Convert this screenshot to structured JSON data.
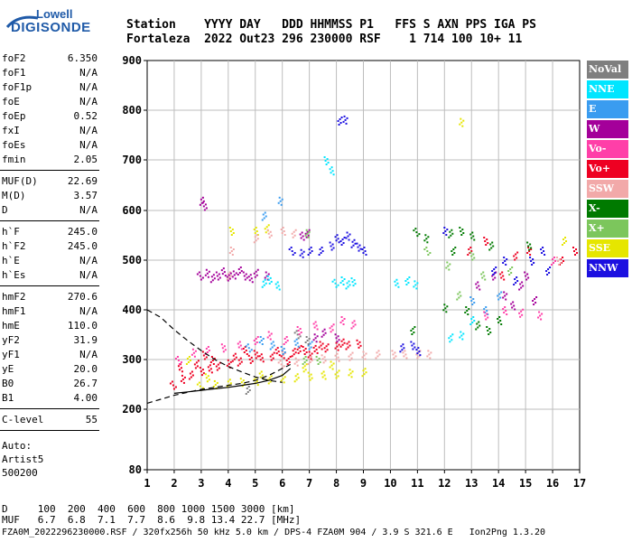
{
  "logo": {
    "line1": "Lowell",
    "line2": "DIGISONDE"
  },
  "header": {
    "line1": "Station    YYYY DAY   DDD HHMMSS P1   FFS S AXN PPS IGA PS",
    "line2": "Fortaleza  2022 Out23 296 230000 RSF    1 714 100 10+ 11"
  },
  "params_group1": [
    {
      "key": "foF2",
      "value": "6.350"
    },
    {
      "key": "foF1",
      "value": "N/A"
    },
    {
      "key": "foF1p",
      "value": "N/A"
    },
    {
      "key": "foE",
      "value": "N/A"
    },
    {
      "key": "foEp",
      "value": "0.52"
    },
    {
      "key": "fxI",
      "value": "N/A"
    },
    {
      "key": "foEs",
      "value": "N/A"
    },
    {
      "key": "fmin",
      "value": "2.05"
    }
  ],
  "params_group2": [
    {
      "key": "MUF(D)",
      "value": "22.69"
    },
    {
      "key": "M(D)",
      "value": "3.57"
    },
    {
      "key": "D",
      "value": "N/A"
    }
  ],
  "params_group3": [
    {
      "key": "h`F",
      "value": "245.0"
    },
    {
      "key": "h`F2",
      "value": "245.0"
    },
    {
      "key": "h`E",
      "value": "N/A"
    },
    {
      "key": "h`Es",
      "value": "N/A"
    }
  ],
  "params_group4": [
    {
      "key": "hmF2",
      "value": "270.6"
    },
    {
      "key": "hmF1",
      "value": "N/A"
    },
    {
      "key": "hmE",
      "value": "110.0"
    },
    {
      "key": "yF2",
      "value": "31.9"
    },
    {
      "key": "yF1",
      "value": "N/A"
    },
    {
      "key": "yE",
      "value": "20.0"
    },
    {
      "key": "B0",
      "value": "26.7"
    },
    {
      "key": "B1",
      "value": "4.00"
    }
  ],
  "params_group5": [
    {
      "key": "C-level",
      "value": "55"
    }
  ],
  "auto_lines": [
    "Auto:",
    "Artist5",
    "500200"
  ],
  "legend": [
    {
      "label": "NoVal",
      "color": "#7f7f7f"
    },
    {
      "label": "NNE",
      "color": "#00e5ff"
    },
    {
      "label": "E",
      "color": "#3a9cf0"
    },
    {
      "label": "W",
      "color": "#a4009a"
    },
    {
      "label": "Vo-",
      "color": "#ff3fa8"
    },
    {
      "label": "Vo+",
      "color": "#ee0022"
    },
    {
      "label": "SSW",
      "color": "#f2a9a9"
    },
    {
      "label": "X-",
      "color": "#007a00"
    },
    {
      "label": "X+",
      "color": "#7cc65c"
    },
    {
      "label": "SSE",
      "color": "#e6e600"
    },
    {
      "label": "NNW",
      "color": "#1c10e0"
    }
  ],
  "bottom": {
    "d_line": "D     100  200  400  600  800 1000 1500 3000 [km]",
    "muf_line": "MUF   6.7  6.8  7.1  7.7  8.6  9.8 13.4 22.7 [MHz]",
    "footer": "FZA0M_2022296230000.RSF / 320fx256h 50 kHz 5.0 km / DPS-4 FZA0M 904 / 3.9 S 321.6 E   Ion2Png 1.3.20"
  },
  "chart_data": {
    "type": "scatter",
    "xlim": [
      1,
      17
    ],
    "ylim": [
      80,
      900
    ],
    "x_ticks": [
      "1",
      "2",
      "3",
      "4",
      "5",
      "6",
      "7",
      "8",
      "9",
      "10",
      "11",
      "12",
      "13",
      "14",
      "15",
      "16",
      "17"
    ],
    "y_ticks": [
      "80",
      "200",
      "300",
      "400",
      "500",
      "600",
      "700",
      "800",
      "900"
    ],
    "grid": true,
    "series": [
      {
        "name": "Vo+",
        "color": "#ee0022",
        "points": [
          [
            2.0,
            250
          ],
          [
            2.3,
            262
          ],
          [
            2.6,
            270
          ],
          [
            3.0,
            278
          ],
          [
            3.3,
            283
          ],
          [
            3.6,
            288
          ],
          [
            4.0,
            293
          ],
          [
            4.4,
            297
          ],
          [
            4.8,
            302
          ],
          [
            5.2,
            305
          ],
          [
            5.6,
            308
          ],
          [
            6.0,
            312
          ],
          [
            6.4,
            316
          ],
          [
            6.8,
            320
          ],
          [
            7.2,
            322
          ],
          [
            7.6,
            325
          ],
          [
            8.0,
            328
          ],
          [
            8.4,
            330
          ],
          [
            8.8,
            333
          ],
          [
            2.2,
            285
          ],
          [
            2.8,
            292
          ],
          [
            3.4,
            300
          ],
          [
            4.2,
            306
          ],
          [
            5.0,
            312
          ],
          [
            5.8,
            318
          ],
          [
            6.6,
            322
          ],
          [
            7.4,
            330
          ],
          [
            8.2,
            335
          ],
          [
            3.1,
            310
          ],
          [
            4.6,
            320
          ],
          [
            6.2,
            300
          ],
          [
            7.0,
            310
          ],
          [
            12.9,
            520
          ],
          [
            13.5,
            540
          ],
          [
            14.1,
            470
          ],
          [
            14.6,
            510
          ],
          [
            15.1,
            520
          ],
          [
            16.3,
            500
          ],
          [
            16.8,
            520
          ]
        ]
      },
      {
        "name": "SSE",
        "color": "#e6e600",
        "points": [
          [
            3.0,
            248
          ],
          [
            3.5,
            251
          ],
          [
            4.0,
            254
          ],
          [
            4.5,
            256
          ],
          [
            5.0,
            258
          ],
          [
            5.5,
            261
          ],
          [
            6.0,
            263
          ],
          [
            6.5,
            265
          ],
          [
            7.0,
            268
          ],
          [
            7.5,
            270
          ],
          [
            8.0,
            272
          ],
          [
            8.5,
            274
          ],
          [
            9.0,
            276
          ],
          [
            3.2,
            265
          ],
          [
            5.2,
            270
          ],
          [
            6.8,
            285
          ],
          [
            7.8,
            290
          ],
          [
            2.5,
            300
          ],
          [
            4.1,
            560
          ],
          [
            5.0,
            560
          ],
          [
            5.4,
            565
          ],
          [
            12.6,
            777
          ],
          [
            16.4,
            540
          ]
        ]
      },
      {
        "name": "SSW",
        "color": "#f2a9a9",
        "points": [
          [
            6.0,
            292
          ],
          [
            6.5,
            297
          ],
          [
            7.0,
            300
          ],
          [
            7.5,
            303
          ],
          [
            8.0,
            306
          ],
          [
            8.5,
            308
          ],
          [
            9.0,
            310
          ],
          [
            9.5,
            312
          ],
          [
            10.1,
            312
          ],
          [
            10.5,
            312
          ],
          [
            11.0,
            312
          ],
          [
            11.4,
            312
          ],
          [
            5.0,
            545
          ],
          [
            5.5,
            555
          ],
          [
            6.0,
            560
          ],
          [
            6.4,
            555
          ],
          [
            4.1,
            520
          ],
          [
            4.0,
            470
          ],
          [
            16.2,
            500
          ]
        ]
      },
      {
        "name": "W",
        "color": "#a4009a",
        "points": [
          [
            3.0,
            470
          ],
          [
            3.2,
            475
          ],
          [
            3.4,
            465
          ],
          [
            3.6,
            470
          ],
          [
            3.8,
            478
          ],
          [
            4.0,
            468
          ],
          [
            4.2,
            472
          ],
          [
            4.4,
            480
          ],
          [
            4.6,
            470
          ],
          [
            4.8,
            465
          ],
          [
            5.0,
            475
          ],
          [
            5.4,
            470
          ],
          [
            3.0,
            620
          ],
          [
            3.1,
            610
          ],
          [
            6.7,
            550
          ],
          [
            6.9,
            555
          ],
          [
            7.2,
            345
          ],
          [
            7.5,
            355
          ],
          [
            8.0,
            345
          ],
          [
            13.2,
            450
          ],
          [
            13.8,
            470
          ],
          [
            14.2,
            430
          ],
          [
            14.8,
            450
          ],
          [
            15.0,
            470
          ],
          [
            14.5,
            410
          ],
          [
            15.3,
            420
          ]
        ]
      },
      {
        "name": "NNW",
        "color": "#1c10e0",
        "points": [
          [
            6.4,
            520
          ],
          [
            6.7,
            515
          ],
          [
            7.0,
            520
          ],
          [
            7.8,
            530
          ],
          [
            8.0,
            545
          ],
          [
            8.2,
            540
          ],
          [
            8.4,
            550
          ],
          [
            8.6,
            535
          ],
          [
            8.8,
            528
          ],
          [
            9.0,
            520
          ],
          [
            8.1,
            780
          ],
          [
            8.3,
            782
          ],
          [
            10.4,
            325
          ],
          [
            10.8,
            330
          ],
          [
            11.0,
            318
          ],
          [
            13.8,
            480
          ],
          [
            14.2,
            500
          ],
          [
            14.6,
            460
          ],
          [
            15.2,
            500
          ],
          [
            15.6,
            520
          ],
          [
            15.8,
            480
          ],
          [
            12.0,
            560
          ],
          [
            7.4,
            520
          ]
        ]
      },
      {
        "name": "NNE",
        "color": "#00e5ff",
        "points": [
          [
            8.0,
            455
          ],
          [
            8.2,
            460
          ],
          [
            8.4,
            452
          ],
          [
            8.6,
            458
          ],
          [
            10.2,
            455
          ],
          [
            10.6,
            460
          ],
          [
            10.9,
            452
          ],
          [
            5.3,
            455
          ],
          [
            5.5,
            462
          ],
          [
            5.8,
            450
          ],
          [
            12.2,
            345
          ],
          [
            12.6,
            350
          ],
          [
            13.0,
            380
          ],
          [
            7.6,
            700
          ],
          [
            7.8,
            680
          ]
        ]
      },
      {
        "name": "E",
        "color": "#3a9cf0",
        "points": [
          [
            4.8,
            325
          ],
          [
            5.2,
            340
          ],
          [
            5.6,
            330
          ],
          [
            6.0,
            320
          ],
          [
            6.5,
            335
          ],
          [
            7.0,
            330
          ],
          [
            5.9,
            620
          ],
          [
            5.3,
            590
          ],
          [
            13.0,
            420
          ],
          [
            13.5,
            400
          ],
          [
            14.0,
            430
          ]
        ]
      },
      {
        "name": "Vo-",
        "color": "#ff3fa8",
        "points": [
          [
            2.2,
            300
          ],
          [
            2.7,
            315
          ],
          [
            3.2,
            320
          ],
          [
            3.8,
            325
          ],
          [
            4.4,
            330
          ],
          [
            5.0,
            340
          ],
          [
            5.5,
            350
          ],
          [
            6.1,
            340
          ],
          [
            6.6,
            360
          ],
          [
            7.2,
            370
          ],
          [
            7.8,
            365
          ],
          [
            8.2,
            380
          ],
          [
            8.6,
            372
          ],
          [
            13.5,
            390
          ],
          [
            14.2,
            400
          ],
          [
            14.8,
            395
          ],
          [
            15.5,
            390
          ],
          [
            16.0,
            500
          ]
        ]
      },
      {
        "name": "X-",
        "color": "#007a00",
        "points": [
          [
            11.0,
            558
          ],
          [
            11.3,
            545
          ],
          [
            12.2,
            555
          ],
          [
            12.6,
            560
          ],
          [
            13.0,
            550
          ],
          [
            12.3,
            520
          ],
          [
            12.8,
            400
          ],
          [
            13.2,
            370
          ],
          [
            13.6,
            360
          ],
          [
            14.0,
            380
          ],
          [
            10.8,
            360
          ],
          [
            12.0,
            405
          ],
          [
            13.7,
            530
          ],
          [
            15.1,
            530
          ]
        ]
      },
      {
        "name": "X+",
        "color": "#7cc65c",
        "points": [
          [
            11.4,
            520
          ],
          [
            12.1,
            490
          ],
          [
            12.5,
            430
          ],
          [
            13.0,
            510
          ],
          [
            13.4,
            470
          ],
          [
            14.4,
            480
          ],
          [
            6.9,
            555
          ],
          [
            6.8,
            300
          ],
          [
            7.3,
            300
          ]
        ]
      },
      {
        "name": "NoVal",
        "color": "#7f7f7f",
        "points": [
          [
            6.6,
            352
          ],
          [
            6.9,
            340
          ],
          [
            4.7,
            240
          ]
        ]
      }
    ],
    "curves": [
      {
        "style": "dashed",
        "points": [
          [
            1,
            400
          ],
          [
            1.5,
            385
          ],
          [
            2,
            360
          ],
          [
            2.5,
            338
          ],
          [
            3,
            318
          ],
          [
            3.5,
            300
          ],
          [
            4,
            286
          ],
          [
            4.5,
            275
          ],
          [
            5,
            265
          ],
          [
            5.5,
            258
          ],
          [
            6,
            254
          ]
        ]
      },
      {
        "style": "dashed",
        "points": [
          [
            1,
            212
          ],
          [
            1.5,
            220
          ],
          [
            2,
            228
          ],
          [
            2.5,
            234
          ],
          [
            3,
            240
          ],
          [
            3.5,
            244
          ],
          [
            4,
            248
          ],
          [
            4.5,
            252
          ],
          [
            5,
            258
          ],
          [
            5.5,
            268
          ],
          [
            6,
            282
          ],
          [
            6.3,
            290
          ]
        ]
      },
      {
        "style": "solid",
        "points": [
          [
            2,
            232
          ],
          [
            2.5,
            235
          ],
          [
            3,
            238
          ],
          [
            3.5,
            241
          ],
          [
            4,
            244
          ],
          [
            4.5,
            248
          ],
          [
            5,
            252
          ],
          [
            5.5,
            258
          ],
          [
            6,
            268
          ],
          [
            6.3,
            282
          ]
        ]
      }
    ]
  }
}
